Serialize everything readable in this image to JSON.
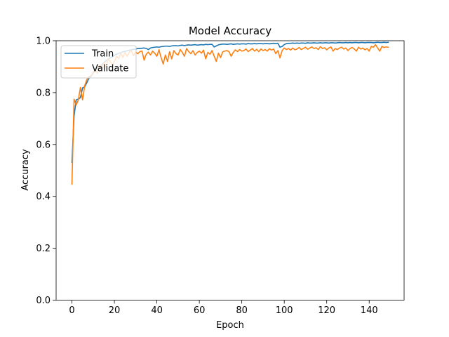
{
  "chart_data": {
    "type": "line",
    "title": "Model Accuracy",
    "xlabel": "Epoch",
    "ylabel": "Accuracy",
    "xlim": [
      -7.45,
      156.45
    ],
    "ylim": [
      0.0,
      1.0
    ],
    "xticks": [
      0,
      20,
      40,
      60,
      80,
      100,
      120,
      140
    ],
    "yticks": [
      0.0,
      0.2,
      0.4,
      0.6,
      0.8,
      1.0
    ],
    "xtick_labels": [
      "0",
      "20",
      "40",
      "60",
      "80",
      "100",
      "120",
      "140"
    ],
    "ytick_labels": [
      "0.0",
      "0.2",
      "0.4",
      "0.6",
      "0.8",
      "1.0"
    ],
    "grid": false,
    "legend_position": "upper-left",
    "series": [
      {
        "name": "Train",
        "color": "#1f77b4",
        "values": [
          0.531,
          0.709,
          0.772,
          0.775,
          0.781,
          0.818,
          0.822,
          0.838,
          0.855,
          0.863,
          0.875,
          0.889,
          0.895,
          0.901,
          0.907,
          0.915,
          0.922,
          0.929,
          0.934,
          0.938,
          0.944,
          0.948,
          0.951,
          0.954,
          0.957,
          0.959,
          0.961,
          0.963,
          0.965,
          0.967,
          0.968,
          0.97,
          0.97,
          0.971,
          0.972,
          0.97,
          0.966,
          0.972,
          0.974,
          0.975,
          0.976,
          0.975,
          0.977,
          0.978,
          0.979,
          0.979,
          0.978,
          0.98,
          0.981,
          0.981,
          0.98,
          0.982,
          0.983,
          0.981,
          0.983,
          0.984,
          0.983,
          0.984,
          0.985,
          0.983,
          0.984,
          0.985,
          0.984,
          0.986,
          0.985,
          0.986,
          0.986,
          0.976,
          0.98,
          0.984,
          0.986,
          0.987,
          0.987,
          0.986,
          0.987,
          0.988,
          0.986,
          0.987,
          0.988,
          0.987,
          0.988,
          0.988,
          0.987,
          0.989,
          0.988,
          0.988,
          0.989,
          0.988,
          0.989,
          0.989,
          0.988,
          0.989,
          0.989,
          0.988,
          0.989,
          0.99,
          0.989,
          0.99,
          0.975,
          0.978,
          0.985,
          0.989,
          0.99,
          0.99,
          0.991,
          0.99,
          0.991,
          0.99,
          0.991,
          0.991,
          0.99,
          0.992,
          0.991,
          0.991,
          0.992,
          0.991,
          0.991,
          0.992,
          0.991,
          0.992,
          0.992,
          0.991,
          0.992,
          0.992,
          0.991,
          0.992,
          0.993,
          0.992,
          0.992,
          0.993,
          0.992,
          0.993,
          0.992,
          0.993,
          0.993,
          0.992,
          0.993,
          0.993,
          0.992,
          0.993,
          0.993,
          0.993,
          0.992,
          0.993,
          0.994,
          0.993,
          0.993,
          0.994,
          0.993,
          0.994
        ]
      },
      {
        "name": "Validate",
        "color": "#ff7f0e",
        "values": [
          0.447,
          0.775,
          0.752,
          0.771,
          0.82,
          0.772,
          0.826,
          0.85,
          0.862,
          0.865,
          0.879,
          0.891,
          0.874,
          0.905,
          0.892,
          0.916,
          0.902,
          0.93,
          0.921,
          0.905,
          0.92,
          0.94,
          0.931,
          0.952,
          0.935,
          0.954,
          0.94,
          0.955,
          0.963,
          0.942,
          0.957,
          0.95,
          0.958,
          0.96,
          0.925,
          0.948,
          0.956,
          0.945,
          0.96,
          0.952,
          0.94,
          0.965,
          0.935,
          0.91,
          0.945,
          0.92,
          0.958,
          0.93,
          0.962,
          0.95,
          0.945,
          0.966,
          0.955,
          0.94,
          0.97,
          0.958,
          0.95,
          0.962,
          0.945,
          0.955,
          0.96,
          0.952,
          0.964,
          0.93,
          0.955,
          0.948,
          0.962,
          0.94,
          0.92,
          0.952,
          0.935,
          0.957,
          0.96,
          0.962,
          0.958,
          0.94,
          0.955,
          0.965,
          0.958,
          0.966,
          0.96,
          0.962,
          0.968,
          0.958,
          0.964,
          0.97,
          0.96,
          0.967,
          0.958,
          0.968,
          0.962,
          0.966,
          0.96,
          0.969,
          0.964,
          0.968,
          0.95,
          0.962,
          0.934,
          0.962,
          0.972,
          0.966,
          0.97,
          0.964,
          0.972,
          0.965,
          0.968,
          0.974,
          0.966,
          0.97,
          0.975,
          0.967,
          0.972,
          0.976,
          0.97,
          0.973,
          0.966,
          0.977,
          0.97,
          0.973,
          0.965,
          0.972,
          0.976,
          0.96,
          0.97,
          0.966,
          0.972,
          0.975,
          0.968,
          0.972,
          0.962,
          0.97,
          0.974,
          0.968,
          0.96,
          0.975,
          0.968,
          0.972,
          0.965,
          0.97,
          0.96,
          0.978,
          0.975,
          0.985,
          0.972,
          0.96,
          0.978,
          0.974,
          0.976,
          0.975
        ]
      }
    ]
  }
}
